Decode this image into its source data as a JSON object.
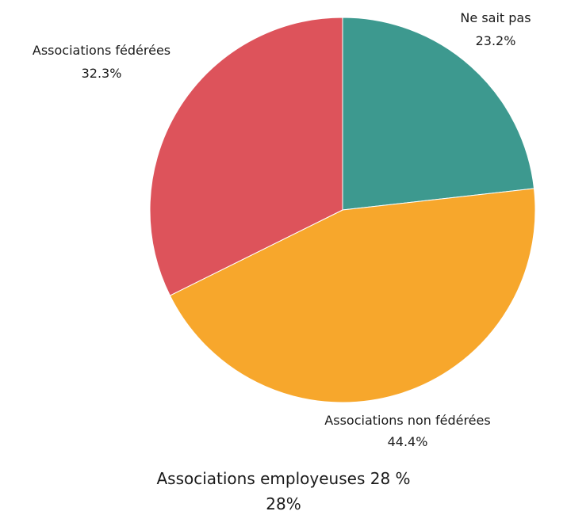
{
  "chart_data": {
    "type": "pie",
    "slices": [
      {
        "label": "Ne sait pas",
        "value": 23.2,
        "value_label": "23.2%",
        "color": "#3d998f"
      },
      {
        "label": "Associations non fédérées",
        "value": 44.4,
        "value_label": "44.4%",
        "color": "#f7a72c"
      },
      {
        "label": "Associations fédérées",
        "value": 32.3,
        "value_label": "32.3%",
        "color": "#dd535b"
      }
    ],
    "start_angle": "12 o'clock",
    "direction": "clockwise"
  },
  "footer": {
    "title": "Associations employeuses 28 %",
    "value": "28%"
  }
}
